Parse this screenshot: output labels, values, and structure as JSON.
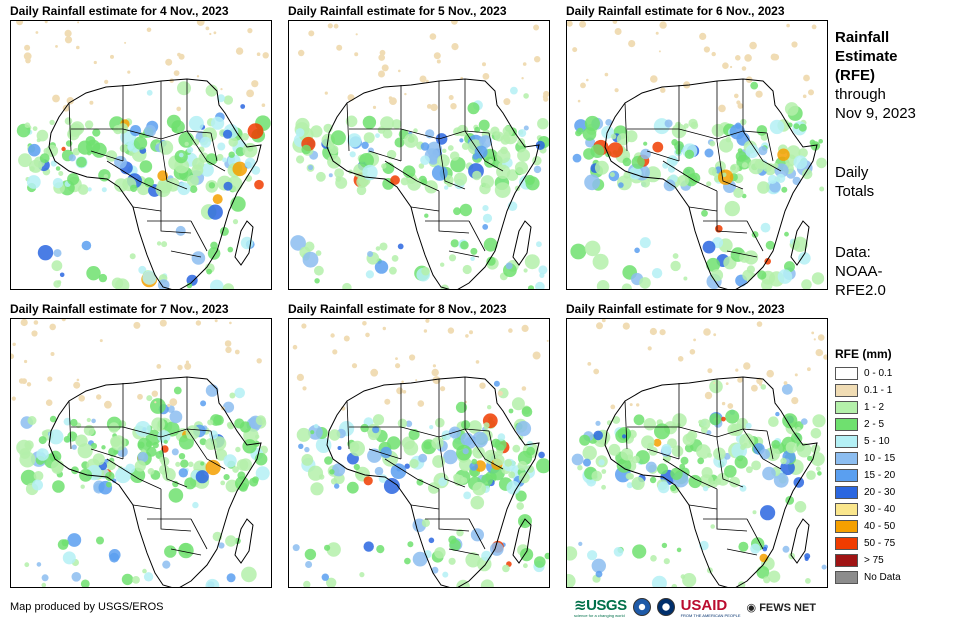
{
  "panels": [
    {
      "title": "Daily Rainfall estimate for 4 Nov., 2023"
    },
    {
      "title": "Daily Rainfall estimate for 5 Nov., 2023"
    },
    {
      "title": "Daily Rainfall estimate for 6 Nov., 2023"
    },
    {
      "title": "Daily Rainfall estimate for 7 Nov., 2023"
    },
    {
      "title": "Daily Rainfall estimate for 8 Nov., 2023"
    },
    {
      "title": "Daily Rainfall estimate for 9 Nov., 2023"
    }
  ],
  "sidebar": {
    "title_lines": [
      "Rainfall",
      "Estimate",
      "(RFE)"
    ],
    "through_lines": [
      "through",
      "Nov 9, 2023"
    ],
    "totals_lines": [
      "Daily",
      "Totals"
    ],
    "data_lines": [
      "Data:",
      "NOAA-",
      "RFE2.0"
    ]
  },
  "legend": {
    "title": "RFE (mm)",
    "items": [
      {
        "label": "0 - 0.1",
        "color": "#ffffff"
      },
      {
        "label": "0.1 - 1",
        "color": "#f0dcb4"
      },
      {
        "label": "1 - 2",
        "color": "#b4f0aa"
      },
      {
        "label": "2 - 5",
        "color": "#6fe06f"
      },
      {
        "label": "5 - 10",
        "color": "#b4f0f5"
      },
      {
        "label": "10 - 15",
        "color": "#8cbdf0"
      },
      {
        "label": "15 - 20",
        "color": "#5a9ff0"
      },
      {
        "label": "20 - 30",
        "color": "#2a66e0"
      },
      {
        "label": "30 - 40",
        "color": "#fae68c"
      },
      {
        "label": "40 - 50",
        "color": "#f5a000"
      },
      {
        "label": "50 - 75",
        "color": "#f03c00"
      },
      {
        "label": "> 75",
        "color": "#a01414"
      },
      {
        "label": "No Data",
        "color": "#8c8c8c"
      }
    ]
  },
  "footer": {
    "credit": "Map produced by USGS/EROS",
    "logos": [
      "usgs-logo",
      "noaa-logo",
      "usaid-seal-logo",
      "usaid-logo",
      "fews-net-logo"
    ],
    "usgs_text": "USGS",
    "usgs_tagline": "science for a changing world",
    "usaid_text": "USAID",
    "usaid_tagline": "FROM THE AMERICAN PEOPLE",
    "fews_text": "FEWS NET"
  }
}
